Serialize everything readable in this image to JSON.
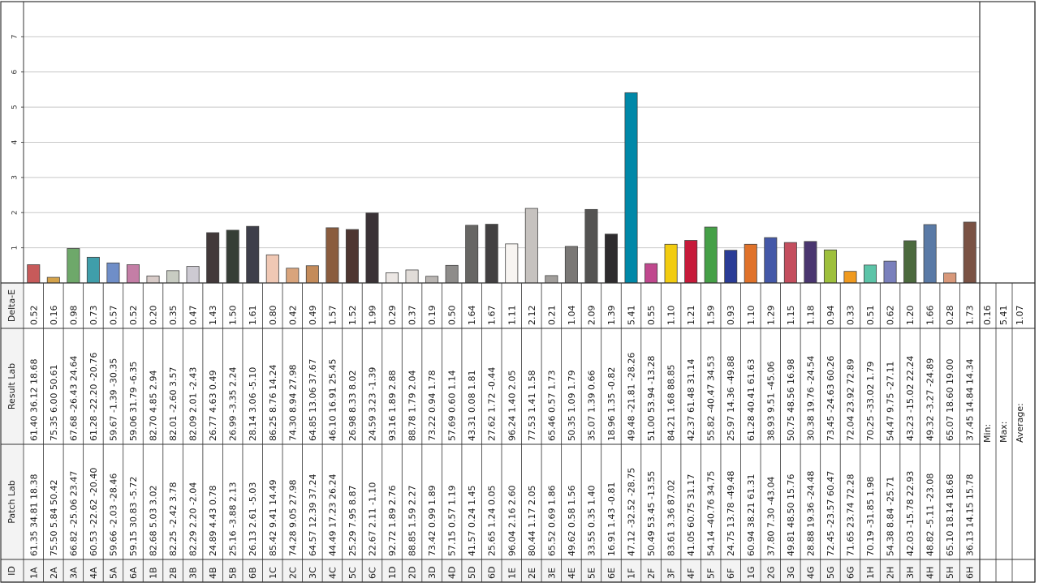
{
  "chart_data": {
    "type": "bar",
    "ylabel": "Delta-E",
    "ylim": [
      0,
      8
    ],
    "yticks": [
      "1",
      "2",
      "3",
      "4",
      "5",
      "6",
      "7"
    ],
    "grid": true,
    "row_labels": {
      "id": "ID",
      "patch": "Patch Lab",
      "result": "Result Lab",
      "delta": "Delta-E"
    },
    "patches": [
      {
        "id": "1A",
        "patch": "61.35 34.81 18.38",
        "result": "61.40 36.12 18.68",
        "de": "0.52",
        "v": 0.52,
        "color": "#c75a5a"
      },
      {
        "id": "2A",
        "patch": "75.50 5.84 50.42",
        "result": "75.35 6.00 50.61",
        "de": "0.16",
        "v": 0.16,
        "color": "#d4a24a"
      },
      {
        "id": "3A",
        "patch": "66.82 -25.06 23.47",
        "result": "67.68 -26.43 24.64",
        "de": "0.98",
        "v": 0.98,
        "color": "#6ea86a"
      },
      {
        "id": "4A",
        "patch": "60.53 -22.62 -20.40",
        "result": "61.28 -22.20 -20.76",
        "de": "0.73",
        "v": 0.73,
        "color": "#3f9eaa"
      },
      {
        "id": "5A",
        "patch": "59.66 -2.03 -28.46",
        "result": "59.67 -1.39 -30.35",
        "de": "0.57",
        "v": 0.57,
        "color": "#6f8ec8"
      },
      {
        "id": "6A",
        "patch": "59.15 30.83 -5.72",
        "result": "59.06 31.79 -6.35",
        "de": "0.52",
        "v": 0.52,
        "color": "#c47ea6"
      },
      {
        "id": "1B",
        "patch": "82.68 5.03 3.02",
        "result": "82.70 4.85 2.94",
        "de": "0.20",
        "v": 0.2,
        "color": "#d8cbc8"
      },
      {
        "id": "2B",
        "patch": "82.25 -2.42 3.78",
        "result": "82.01 -2.60 3.57",
        "de": "0.35",
        "v": 0.35,
        "color": "#c8ccc2"
      },
      {
        "id": "3B",
        "patch": "82.29 2.20 -2.04",
        "result": "82.09 2.01 -2.43",
        "de": "0.47",
        "v": 0.47,
        "color": "#cdcad2"
      },
      {
        "id": "4B",
        "patch": "24.89 4.43 0.78",
        "result": "26.77 4.63 0.49",
        "de": "1.43",
        "v": 1.43,
        "color": "#42393a"
      },
      {
        "id": "5B",
        "patch": "25.16 -3.88 2.13",
        "result": "26.99 -3.35 2.24",
        "de": "1.50",
        "v": 1.5,
        "color": "#363e36"
      },
      {
        "id": "6B",
        "patch": "26.13 2.61 -5.03",
        "result": "28.14 3.06 -5.10",
        "de": "1.61",
        "v": 1.61,
        "color": "#3e3f4a"
      },
      {
        "id": "1C",
        "patch": "85.42 9.41 14.49",
        "result": "86.25 8.76 14.24",
        "de": "0.80",
        "v": 0.8,
        "color": "#f0c8b4"
      },
      {
        "id": "2C",
        "patch": "74.28 9.05 27.98",
        "result": "74.30 8.94 27.98",
        "de": "0.42",
        "v": 0.42,
        "color": "#d9a47c"
      },
      {
        "id": "3C",
        "patch": "64.57 12.39 37.24",
        "result": "64.85 13.06 37.67",
        "de": "0.49",
        "v": 0.49,
        "color": "#c48b5a"
      },
      {
        "id": "4C",
        "patch": "44.49 17.23 26.24",
        "result": "46.10 16.91 25.45",
        "de": "1.57",
        "v": 1.57,
        "color": "#8a5c3e"
      },
      {
        "id": "5C",
        "patch": "25.29 7.95 8.87",
        "result": "26.98 8.33 8.02",
        "de": "1.52",
        "v": 1.52,
        "color": "#4e3631"
      },
      {
        "id": "6C",
        "patch": "22.67 2.11 -1.10",
        "result": "24.59 3.23 -1.39",
        "de": "1.99",
        "v": 1.99,
        "color": "#3a3236"
      },
      {
        "id": "1D",
        "patch": "92.72 1.89 2.76",
        "result": "93.16 1.89 2.88",
        "de": "0.29",
        "v": 0.29,
        "color": "#ece7e4"
      },
      {
        "id": "2D",
        "patch": "88.85 1.59 2.27",
        "result": "88.78 1.79 2.04",
        "de": "0.37",
        "v": 0.37,
        "color": "#e1dcd8"
      },
      {
        "id": "3D",
        "patch": "73.42 0.99 1.89",
        "result": "73.22 0.94 1.78",
        "de": "0.19",
        "v": 0.19,
        "color": "#b9b5b2"
      },
      {
        "id": "4D",
        "patch": "57.15 0.57 1.19",
        "result": "57.69 0.60 1.14",
        "de": "0.50",
        "v": 0.5,
        "color": "#8e8c8a"
      },
      {
        "id": "5D",
        "patch": "41.57 0.24 1.45",
        "result": "43.31 0.08 1.81",
        "de": "1.64",
        "v": 1.64,
        "color": "#676664"
      },
      {
        "id": "6D",
        "patch": "25.65 1.24 0.05",
        "result": "27.62 1.72 -0.44",
        "de": "1.67",
        "v": 1.67,
        "color": "#424041"
      },
      {
        "id": "1E",
        "patch": "96.04 2.16 2.60",
        "result": "96.24 1.40 2.05",
        "de": "1.11",
        "v": 1.11,
        "color": "#f7f4f1"
      },
      {
        "id": "2E",
        "patch": "80.44 1.17 2.05",
        "result": "77.53 1.41 1.58",
        "de": "2.12",
        "v": 2.12,
        "color": "#c6c2bf"
      },
      {
        "id": "3E",
        "patch": "65.52 0.69 1.86",
        "result": "65.46 0.57 1.73",
        "de": "0.21",
        "v": 0.21,
        "color": "#a19e9b"
      },
      {
        "id": "4E",
        "patch": "49.62 0.58 1.56",
        "result": "50.35 1.09 1.79",
        "de": "1.04",
        "v": 1.04,
        "color": "#7a7876"
      },
      {
        "id": "5E",
        "patch": "33.55 0.35 1.40",
        "result": "35.07 1.39 0.66",
        "de": "2.09",
        "v": 2.09,
        "color": "#545352"
      },
      {
        "id": "6E",
        "patch": "16.91 1.43 -0.81",
        "result": "18.96 1.35 -0.82",
        "de": "1.39",
        "v": 1.39,
        "color": "#2e2c2e"
      },
      {
        "id": "1F",
        "patch": "47.12 -32.52 -28.75",
        "result": "49.48 -21.81 -28.26",
        "de": "5.41",
        "v": 5.41,
        "color": "#0088a8"
      },
      {
        "id": "2F",
        "patch": "50.49 53.45 -13.55",
        "result": "51.00 53.94 -13.28",
        "de": "0.55",
        "v": 0.55,
        "color": "#c0488e"
      },
      {
        "id": "3F",
        "patch": "83.61 3.36 87.02",
        "result": "84.21 1.68 88.85",
        "de": "1.10",
        "v": 1.1,
        "color": "#f2cc10"
      },
      {
        "id": "4F",
        "patch": "41.05 60.75 31.17",
        "result": "42.37 61.48 31.14",
        "de": "1.21",
        "v": 1.21,
        "color": "#c61a3a"
      },
      {
        "id": "5F",
        "patch": "54.14 -40.76 34.75",
        "result": "55.82 -40.47 34.53",
        "de": "1.59",
        "v": 1.59,
        "color": "#45a047"
      },
      {
        "id": "6F",
        "patch": "24.75 13.78 -49.48",
        "result": "25.97 14.36 -49.88",
        "de": "0.93",
        "v": 0.93,
        "color": "#2a3c96"
      },
      {
        "id": "1G",
        "patch": "60.94 38.21 61.31",
        "result": "61.28 40.41 61.63",
        "de": "1.10",
        "v": 1.1,
        "color": "#e0722a"
      },
      {
        "id": "2G",
        "patch": "37.80 7.30 -43.04",
        "result": "38.93 9.51 -45.06",
        "de": "1.29",
        "v": 1.29,
        "color": "#4458a8"
      },
      {
        "id": "3G",
        "patch": "49.81 48.50 15.76",
        "result": "50.75 48.56 16.98",
        "de": "1.15",
        "v": 1.15,
        "color": "#c44e5e"
      },
      {
        "id": "4G",
        "patch": "28.88 19.36 -24.48",
        "result": "30.38 19.76 -24.54",
        "de": "1.18",
        "v": 1.18,
        "color": "#4a3670"
      },
      {
        "id": "5G",
        "patch": "72.45 -23.57 60.47",
        "result": "73.45 -24.63 60.26",
        "de": "0.94",
        "v": 0.94,
        "color": "#9ec03c"
      },
      {
        "id": "6G",
        "patch": "71.65 23.74 72.28",
        "result": "72.04 23.92 72.89",
        "de": "0.33",
        "v": 0.33,
        "color": "#f09a1e"
      },
      {
        "id": "1H",
        "patch": "70.19 -31.85 1.98",
        "result": "70.25 -33.02 1.79",
        "de": "0.51",
        "v": 0.51,
        "color": "#5cc4a8"
      },
      {
        "id": "2H",
        "patch": "54.38 8.84 -25.71",
        "result": "54.47 9.75 -27.11",
        "de": "0.62",
        "v": 0.62,
        "color": "#7a80bc"
      },
      {
        "id": "3H",
        "patch": "42.03 -15.78 22.93",
        "result": "43.23 -15.02 22.24",
        "de": "1.20",
        "v": 1.2,
        "color": "#4c6a3e"
      },
      {
        "id": "4H",
        "patch": "48.82 -5.11 -23.08",
        "result": "49.32 -3.27 -24.89",
        "de": "1.66",
        "v": 1.66,
        "color": "#5a7aa6"
      },
      {
        "id": "5H",
        "patch": "65.10 18.14 18.68",
        "result": "65.07 18.60 19.00",
        "de": "0.28",
        "v": 0.28,
        "color": "#d8987a"
      },
      {
        "id": "6H",
        "patch": "36.13 14.15 15.78",
        "result": "37.45 14.84 14.34",
        "de": "1.73",
        "v": 1.73,
        "color": "#7a5244"
      }
    ],
    "summary": {
      "min_label": "Min:",
      "min": "0.16",
      "max_label": "Max:",
      "max": "5.41",
      "avg_label": "Average:",
      "avg": "1.07"
    }
  }
}
